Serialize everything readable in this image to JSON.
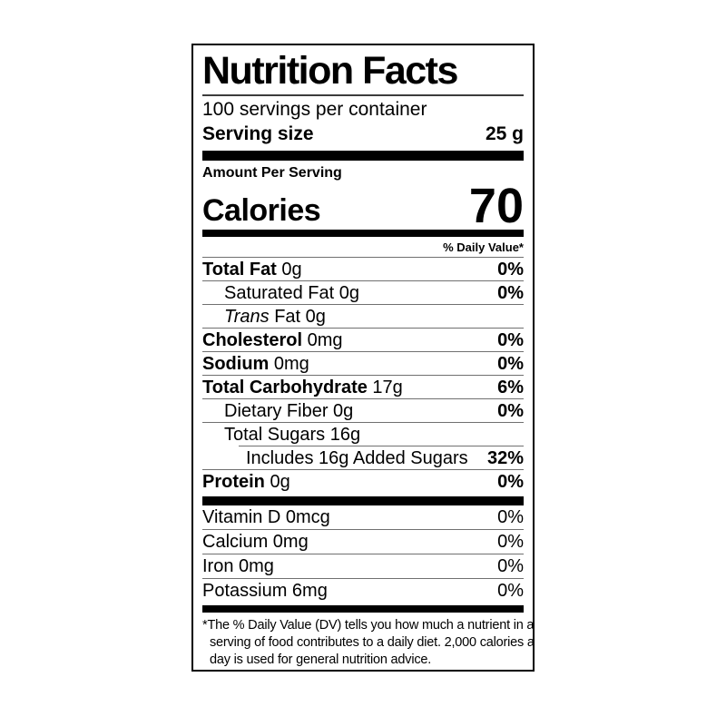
{
  "colors": {
    "text": "#000000",
    "background": "#ffffff",
    "hairline": "#707070",
    "bar": "#000000"
  },
  "label": {
    "title": "Nutrition Facts",
    "servings_per_container": "100 servings per container",
    "serving_size": {
      "label": "Serving size",
      "value": "25 g"
    },
    "amount_per_serving": "Amount Per Serving",
    "calories": {
      "label": "Calories",
      "value": "70"
    },
    "daily_value_header": "% Daily Value*",
    "nutrient_rows": [
      {
        "segments": [
          {
            "text": "Total Fat",
            "bold": true
          },
          {
            "text": " 0g"
          }
        ],
        "dv": "0%",
        "dv_bold": true,
        "indent": 0,
        "divider_indent": false
      },
      {
        "segments": [
          {
            "text": "Saturated Fat 0g"
          }
        ],
        "dv": "0%",
        "dv_bold": true,
        "indent": 1,
        "divider_indent": false
      },
      {
        "segments": [
          {
            "text": "Trans",
            "italic": true
          },
          {
            "text": " Fat 0g"
          }
        ],
        "dv": "",
        "dv_bold": false,
        "indent": 1,
        "divider_indent": false
      },
      {
        "segments": [
          {
            "text": "Cholesterol",
            "bold": true
          },
          {
            "text": " 0mg"
          }
        ],
        "dv": "0%",
        "dv_bold": true,
        "indent": 0,
        "divider_indent": false
      },
      {
        "segments": [
          {
            "text": "Sodium",
            "bold": true
          },
          {
            "text": " 0mg"
          }
        ],
        "dv": "0%",
        "dv_bold": true,
        "indent": 0,
        "divider_indent": false
      },
      {
        "segments": [
          {
            "text": "Total Carbohydrate",
            "bold": true
          },
          {
            "text": " 17g"
          }
        ],
        "dv": "6%",
        "dv_bold": true,
        "indent": 0,
        "divider_indent": false
      },
      {
        "segments": [
          {
            "text": "Dietary Fiber 0g"
          }
        ],
        "dv": "0%",
        "dv_bold": true,
        "indent": 1,
        "divider_indent": false
      },
      {
        "segments": [
          {
            "text": "Total Sugars 16g"
          }
        ],
        "dv": "",
        "dv_bold": false,
        "indent": 1,
        "divider_indent": false
      },
      {
        "segments": [
          {
            "text": "Includes 16g Added Sugars"
          }
        ],
        "dv": "32%",
        "dv_bold": true,
        "indent": 2,
        "divider_indent": true
      },
      {
        "segments": [
          {
            "text": "Protein",
            "bold": true
          },
          {
            "text": " 0g"
          }
        ],
        "dv": "0%",
        "dv_bold": true,
        "indent": 0,
        "divider_indent": false
      }
    ],
    "micronutrient_rows": [
      {
        "text": "Vitamin D 0mcg",
        "dv": "0%"
      },
      {
        "text": "Calcium 0mg",
        "dv": "0%"
      },
      {
        "text": "Iron 0mg",
        "dv": "0%"
      },
      {
        "text": "Potassium 6mg",
        "dv": "0%"
      }
    ],
    "footnote_lines": [
      "*The % Daily Value (DV) tells you how much a nutrient in a",
      "serving of food contributes to a daily diet. 2,000 calories a",
      "day is used for general nutrition advice."
    ]
  }
}
